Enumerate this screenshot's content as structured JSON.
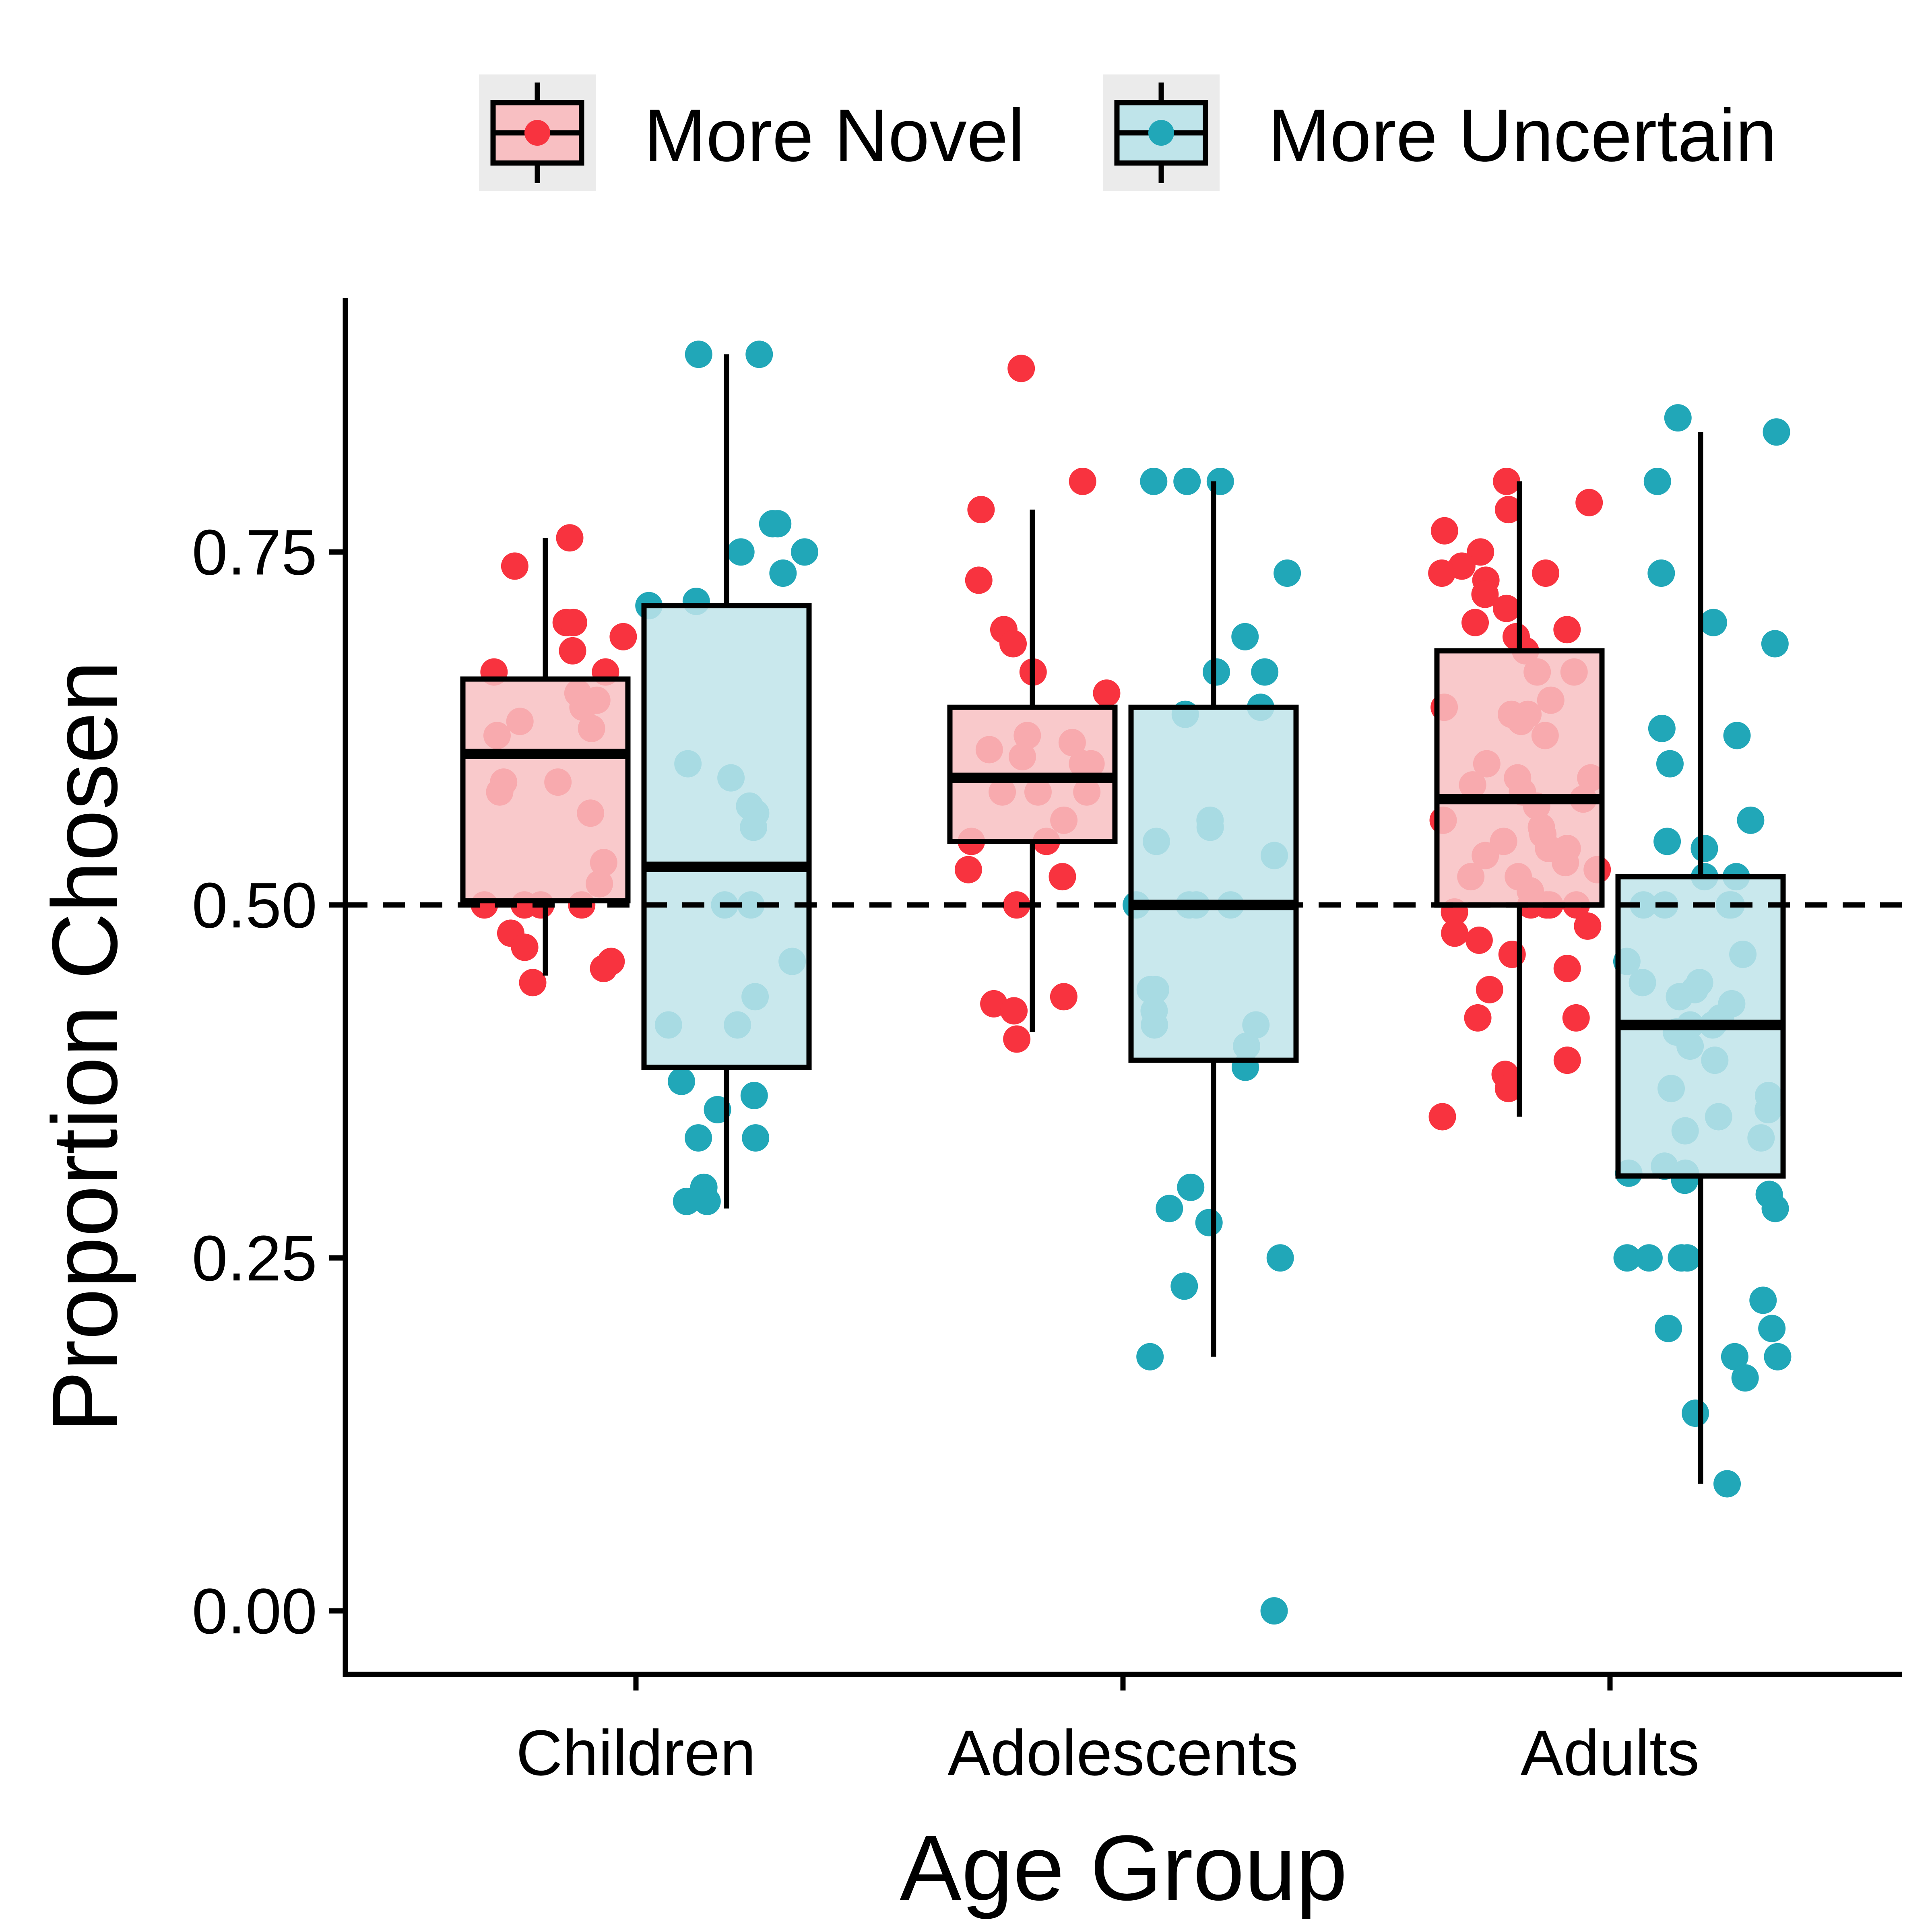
{
  "chart_data": {
    "type": "boxplot",
    "xlabel": "Age Group",
    "ylabel": "Proportion Chosen",
    "categories": [
      "Children",
      "Adolescents",
      "Adults"
    ],
    "ylim": [
      -0.045,
      0.93
    ],
    "yticks": [
      0.0,
      0.25,
      0.5,
      0.75
    ],
    "ytick_labels": [
      "0.00",
      "0.25",
      "0.50",
      "0.75"
    ],
    "reference_line": {
      "y": 0.5,
      "style": "dashed"
    },
    "legend": {
      "position": "top"
    },
    "grid": false,
    "series": [
      {
        "name": "More Novel",
        "fill": "#f8bfc2",
        "point_color": "#f8333f",
        "boxes": [
          {
            "category": "Children",
            "whisker_low": 0.45,
            "q1": 0.503,
            "median": 0.607,
            "q3": 0.66,
            "whisker_high": 0.76
          },
          {
            "category": "Adolescents",
            "whisker_low": 0.41,
            "q1": 0.545,
            "median": 0.59,
            "q3": 0.64,
            "whisker_high": 0.78
          },
          {
            "category": "Adults",
            "whisker_low": 0.35,
            "q1": 0.5,
            "median": 0.575,
            "q3": 0.68,
            "whisker_high": 0.8
          }
        ],
        "points": [
          {
            "category": "Children",
            "values": [
              0.76,
              0.74,
              0.7,
              0.69,
              0.7,
              0.68,
              0.665,
              0.665,
              0.65,
              0.645,
              0.64,
              0.63,
              0.625,
              0.62,
              0.587,
              0.587,
              0.58,
              0.565,
              0.53,
              0.515,
              0.5,
              0.5,
              0.5,
              0.5,
              0.48,
              0.47,
              0.46,
              0.455,
              0.445
            ]
          },
          {
            "category": "Adolescents",
            "values": [
              0.88,
              0.8,
              0.78,
              0.73,
              0.695,
              0.685,
              0.665,
              0.65,
              0.62,
              0.615,
              0.61,
              0.605,
              0.6,
              0.6,
              0.58,
              0.58,
              0.58,
              0.56,
              0.545,
              0.545,
              0.525,
              0.52,
              0.5,
              0.435,
              0.43,
              0.425,
              0.405
            ]
          },
          {
            "category": "Adults",
            "values": [
              0.8,
              0.785,
              0.78,
              0.765,
              0.75,
              0.74,
              0.735,
              0.735,
              0.73,
              0.72,
              0.71,
              0.7,
              0.695,
              0.69,
              0.68,
              0.665,
              0.665,
              0.645,
              0.64,
              0.635,
              0.635,
              0.63,
              0.62,
              0.6,
              0.59,
              0.59,
              0.585,
              0.58,
              0.575,
              0.57,
              0.56,
              0.555,
              0.55,
              0.545,
              0.54,
              0.54,
              0.535,
              0.53,
              0.525,
              0.52,
              0.52,
              0.51,
              0.5,
              0.5,
              0.5,
              0.5,
              0.495,
              0.485,
              0.48,
              0.475,
              0.465,
              0.455,
              0.44,
              0.42,
              0.42,
              0.39,
              0.38,
              0.37,
              0.35
            ]
          }
        ]
      },
      {
        "name": "More Uncertain",
        "fill": "#bfe4ea",
        "point_color": "#21a7b8",
        "boxes": [
          {
            "category": "Children",
            "whisker_low": 0.285,
            "q1": 0.385,
            "median": 0.527,
            "q3": 0.712,
            "whisker_high": 0.89
          },
          {
            "category": "Adolescents",
            "whisker_low": 0.18,
            "q1": 0.39,
            "median": 0.5,
            "q3": 0.64,
            "whisker_high": 0.8
          },
          {
            "category": "Adults",
            "whisker_low": 0.09,
            "q1": 0.308,
            "median": 0.415,
            "q3": 0.52,
            "whisker_high": 0.835
          }
        ],
        "points": [
          {
            "category": "Children",
            "values": [
              0.89,
              0.89,
              0.77,
              0.77,
              0.75,
              0.75,
              0.735,
              0.715,
              0.712,
              0.6,
              0.59,
              0.57,
              0.565,
              0.555,
              0.5,
              0.5,
              0.46,
              0.435,
              0.415,
              0.415,
              0.375,
              0.365,
              0.355,
              0.335,
              0.335,
              0.3,
              0.29,
              0.29
            ]
          },
          {
            "category": "Adolescents",
            "values": [
              0.8,
              0.8,
              0.8,
              0.735,
              0.69,
              0.665,
              0.665,
              0.64,
              0.635,
              0.56,
              0.555,
              0.545,
              0.535,
              0.5,
              0.5,
              0.5,
              0.5,
              0.44,
              0.44,
              0.425,
              0.415,
              0.415,
              0.4,
              0.385,
              0.3,
              0.285,
              0.275,
              0.25,
              0.23,
              0.18,
              0.0
            ]
          },
          {
            "category": "Adults",
            "values": [
              0.845,
              0.835,
              0.8,
              0.735,
              0.7,
              0.685,
              0.625,
              0.62,
              0.6,
              0.56,
              0.545,
              0.54,
              0.52,
              0.52,
              0.5,
              0.5,
              0.5,
              0.5,
              0.465,
              0.46,
              0.445,
              0.445,
              0.44,
              0.435,
              0.43,
              0.42,
              0.415,
              0.41,
              0.415,
              0.4,
              0.39,
              0.37,
              0.365,
              0.355,
              0.35,
              0.34,
              0.335,
              0.315,
              0.31,
              0.31,
              0.305,
              0.295,
              0.285,
              0.25,
              0.25,
              0.25,
              0.25,
              0.22,
              0.2,
              0.2,
              0.18,
              0.18,
              0.165,
              0.14,
              0.09
            ]
          }
        ]
      }
    ]
  }
}
